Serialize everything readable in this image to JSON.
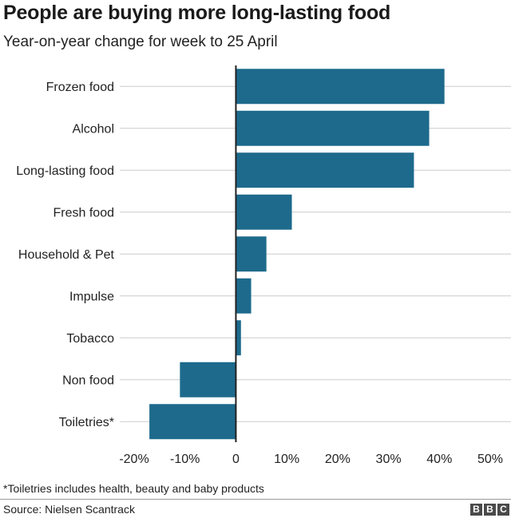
{
  "header": {
    "title": "People are buying more long-lasting food",
    "subtitle": "Year-on-year change for week to 25 April"
  },
  "footer": {
    "footnote": "*Toiletries includes health, beauty and baby products",
    "source": "Source: Nielsen Scantrack",
    "logo_letters": [
      "B",
      "B",
      "C"
    ]
  },
  "colors": {
    "bar": "#1d6a8c",
    "gridline": "#cccccc",
    "axis": "#222222"
  },
  "chart_data": {
    "type": "bar",
    "orientation": "horizontal",
    "title": "People are buying more long-lasting food",
    "subtitle": "Year-on-year change for week to 25 April",
    "xlabel": "",
    "ylabel": "",
    "categories": [
      "Frozen food",
      "Alcohol",
      "Long-lasting food",
      "Fresh food",
      "Household & Pet",
      "Impulse",
      "Tobacco",
      "Non food",
      "Toiletries*"
    ],
    "values": [
      41,
      38,
      35,
      11,
      6,
      3,
      1,
      -11,
      -17
    ],
    "unit": "%",
    "xlim": [
      -20,
      50
    ],
    "xticks": [
      -20,
      -10,
      0,
      10,
      20,
      30,
      40,
      50
    ],
    "xtick_labels": [
      "-20%",
      "-10%",
      "0",
      "10%",
      "20%",
      "30%",
      "40%",
      "50%"
    ],
    "grid": true
  }
}
